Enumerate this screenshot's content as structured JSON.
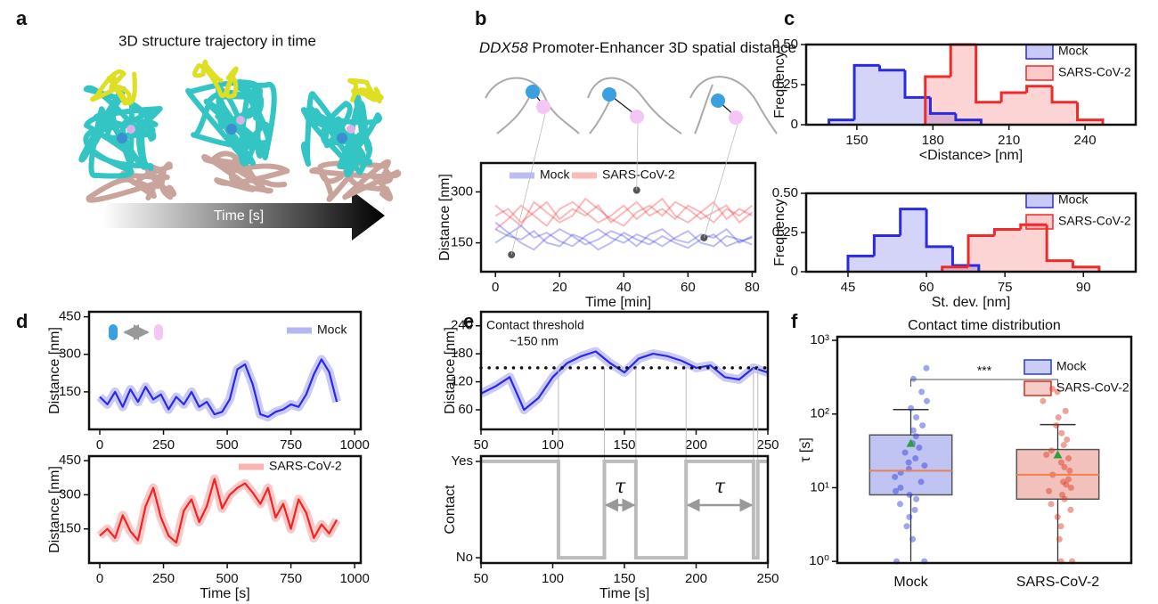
{
  "panel_labels": [
    "a",
    "b",
    "c",
    "d",
    "e",
    "f"
  ],
  "panel_a": {
    "title": "3D structure trajectory in time",
    "arrow_label": "Time [s]"
  },
  "chart_data": [
    {
      "type": "line",
      "title": "DDX58 Promoter-Enhancer 3D spatial distance",
      "xlabel": "Time [min]",
      "ylabel": "Distance [nm]",
      "x": [
        0,
        4,
        8,
        12,
        16,
        20,
        24,
        28,
        32,
        36,
        40,
        44,
        48,
        52,
        56,
        60,
        64,
        68,
        72,
        76,
        80
      ],
      "series": [
        {
          "name": "Mock",
          "color": "#3f3fe8",
          "traces": [
            [
              190,
              170,
              160,
              185,
              150,
              140,
              175,
              160,
              130,
              150,
              180,
              160,
              145,
              170,
              150,
              135,
              160,
              175,
              140,
              155,
              165
            ],
            [
              150,
              175,
              200,
              165,
              180,
              155,
              140,
              170,
              190,
              165,
              150,
              175,
              160,
              140,
              165,
              185,
              150,
              140,
              170,
              160,
              145
            ],
            [
              210,
              180,
              150,
              130,
              165,
              190,
              170,
              145,
              160,
              185,
              170,
              140,
              175,
              190,
              160,
              150,
              175,
              165,
              190,
              150,
              170
            ]
          ]
        },
        {
          "name": "SARS-CoV-2",
          "color": "#f03a3a",
          "traces": [
            [
              230,
              250,
              210,
              240,
              270,
              220,
              250,
              230,
              260,
              210,
              240,
              270,
              230,
              250,
              220,
              260,
              240,
              210,
              250,
              230,
              260
            ],
            [
              190,
              220,
              260,
              230,
              200,
              250,
              270,
              240,
              210,
              230,
              260,
              220,
              250,
              280,
              230,
              210,
              240,
              270,
              220,
              250,
              230
            ],
            [
              260,
              230,
              200,
              270,
              240,
              210,
              230,
              280,
              250,
              220,
              200,
              240,
              260,
              230,
              270,
              250,
              220,
              240,
              260,
              210,
              240
            ]
          ]
        }
      ],
      "points": {
        "x": [
          5,
          44,
          65
        ],
        "values": [
          115,
          305,
          165
        ],
        "color": "#555555"
      },
      "xlim": [
        -4.5,
        81
      ],
      "ylim": [
        65,
        385
      ],
      "xticks": [
        0,
        20,
        40,
        60,
        80
      ],
      "yticks": [
        150,
        300
      ],
      "legend": "upper left"
    },
    {
      "type": "histogram",
      "xlabel": "<Distance> [nm]",
      "ylabel": "Frequency",
      "series": [
        {
          "name": "Mock",
          "color": "#2a2ae0",
          "bins": [
            139,
            149,
            159,
            169,
            179,
            189,
            199
          ],
          "values": [
            0.03,
            0.37,
            0.34,
            0.17,
            0.07,
            0.03
          ]
        },
        {
          "name": "SARS-CoV-2",
          "color": "#ef2a2a",
          "bins": [
            177,
            187,
            197,
            207,
            217,
            227,
            237,
            247
          ],
          "values": [
            0.3,
            0.5,
            0.14,
            0.2,
            0.24,
            0.14,
            0.03
          ]
        }
      ],
      "xlim": [
        130,
        260
      ],
      "ylim": [
        0,
        0.5
      ],
      "xticks": [
        150,
        180,
        210,
        240
      ],
      "yticks": [
        0,
        0.25,
        {
          "value": 0.5,
          "label": "0.50"
        }
      ],
      "legend": "upper right"
    },
    {
      "type": "histogram",
      "xlabel": "St. dev. [nm]",
      "ylabel": "Frequency",
      "series": [
        {
          "name": "Mock",
          "color": "#2a2ae0",
          "bins": [
            45,
            50,
            55,
            60,
            65,
            70
          ],
          "values": [
            0.1,
            0.23,
            0.4,
            0.16,
            0.04
          ]
        },
        {
          "name": "SARS-CoV-2",
          "color": "#ef2a2a",
          "bins": [
            63,
            68,
            73,
            78,
            83,
            88,
            93
          ],
          "values": [
            0.03,
            0.23,
            0.27,
            0.3,
            0.07,
            0.03
          ]
        }
      ],
      "xlim": [
        37,
        100
      ],
      "ylim": [
        0,
        0.5
      ],
      "xticks": [
        45,
        60,
        75,
        90
      ],
      "yticks": [
        0,
        0.25,
        {
          "value": 0.5,
          "label": "0.50"
        }
      ],
      "legend": "upper right"
    },
    {
      "type": "line",
      "ylabel": "Distance [nm]",
      "x": [
        0,
        30,
        60,
        90,
        120,
        150,
        180,
        210,
        240,
        270,
        300,
        330,
        360,
        390,
        420,
        450,
        480,
        510,
        540,
        570,
        600,
        630,
        660,
        690,
        720,
        750,
        780,
        810,
        840,
        870,
        900,
        930
      ],
      "series": [
        {
          "name": "Mock",
          "color": "#2a2ae6",
          "values": [
            130,
            100,
            150,
            90,
            160,
            110,
            170,
            120,
            140,
            80,
            130,
            100,
            150,
            90,
            110,
            60,
            70,
            120,
            240,
            260,
            180,
            60,
            50,
            70,
            80,
            100,
            90,
            140,
            220,
            280,
            230,
            110
          ]
        }
      ],
      "xlim": [
        -42,
        1024
      ],
      "ylim": [
        0,
        470
      ],
      "xticks": [
        0,
        250,
        500,
        750,
        1000
      ],
      "yticks": [
        150,
        300,
        450
      ],
      "legend": "upper right"
    },
    {
      "type": "line",
      "xlabel": "Time [s]",
      "ylabel": "Distance [nm]",
      "x": [
        0,
        30,
        60,
        90,
        120,
        150,
        180,
        210,
        240,
        270,
        300,
        330,
        360,
        390,
        420,
        450,
        480,
        510,
        540,
        570,
        600,
        630,
        660,
        690,
        720,
        750,
        780,
        810,
        840,
        870,
        900,
        930
      ],
      "series": [
        {
          "name": "SARS-CoV-2",
          "color": "#ef2424",
          "values": [
            120,
            150,
            110,
            210,
            140,
            100,
            250,
            330,
            200,
            120,
            90,
            230,
            280,
            180,
            250,
            370,
            240,
            300,
            330,
            350,
            310,
            260,
            330,
            200,
            260,
            150,
            280,
            220,
            110,
            170,
            130,
            190
          ]
        }
      ],
      "xlim": [
        -42,
        1024
      ],
      "ylim": [
        0,
        470
      ],
      "xticks": [
        0,
        250,
        500,
        750,
        1000
      ],
      "yticks": [
        150,
        300,
        450
      ],
      "legend": "upper right"
    },
    {
      "type": "line",
      "ylabel": "Distance [nm]",
      "x": [
        50,
        60,
        70,
        80,
        90,
        100,
        110,
        120,
        130,
        140,
        150,
        160,
        170,
        180,
        190,
        200,
        210,
        220,
        230,
        240,
        250
      ],
      "series": [
        {
          "color": "#2a2ae6",
          "values": [
            95,
            110,
            130,
            60,
            85,
            130,
            160,
            175,
            185,
            160,
            140,
            170,
            180,
            175,
            165,
            150,
            155,
            130,
            125,
            150,
            140
          ]
        }
      ],
      "threshold": 150,
      "annotation": [
        "Contact threshold",
        "~150 nm"
      ],
      "xlim": [
        50,
        250
      ],
      "ylim": [
        18,
        270
      ],
      "xticks": [
        50,
        100,
        150,
        200,
        250
      ],
      "yticks": [
        60,
        120,
        180,
        240
      ]
    },
    {
      "type": "step",
      "xlabel": "Time [s]",
      "ylabel": "Contact",
      "x": [
        50,
        104,
        104,
        136,
        136,
        158,
        158,
        193,
        193,
        240,
        240,
        243,
        243,
        250
      ],
      "values": [
        1,
        1,
        0,
        0,
        1,
        1,
        0,
        0,
        1,
        1,
        0,
        0,
        1,
        1
      ],
      "color": "#bbbbbb",
      "annotations": [
        {
          "text": "τ",
          "x": [
            136,
            158
          ]
        },
        {
          "text": "τ",
          "x": [
            193,
            240
          ]
        }
      ],
      "xlim": [
        50,
        250
      ],
      "ylim": [
        -0.055,
        1.055
      ],
      "xticks": [
        50,
        100,
        150,
        200,
        250
      ],
      "yticks": [
        {
          "value": 0,
          "label": "No"
        },
        {
          "value": 1,
          "label": "Yes"
        }
      ]
    },
    {
      "type": "box",
      "title": "Contact time distribution",
      "ylabel": "τ [s]",
      "log_y": true,
      "categories": [
        "Mock",
        "SARS-CoV-2"
      ],
      "colors": [
        "#2a3ad8",
        "#d8321e"
      ],
      "boxes": [
        {
          "whisker_low": 1,
          "q1": 8,
          "median": 17,
          "q3": 52,
          "whisker_high": 115,
          "mean": 40,
          "points": [
            1,
            1,
            2,
            3,
            4,
            5,
            6,
            7,
            8,
            9,
            10,
            12,
            14,
            16,
            18,
            20,
            22,
            25,
            30,
            35,
            40,
            50,
            60,
            70,
            90,
            120,
            150,
            200,
            300,
            420
          ]
        },
        {
          "whisker_low": 1,
          "q1": 7,
          "median": 15,
          "q3": 33,
          "whisker_high": 72,
          "mean": 28,
          "points": [
            1,
            1,
            2,
            3,
            4,
            5,
            6,
            7,
            8,
            9,
            10,
            11,
            12,
            13,
            15,
            17,
            19,
            22,
            25,
            28,
            32,
            38,
            45,
            55,
            70,
            90,
            110,
            150,
            200,
            220
          ]
        }
      ],
      "significance": "***",
      "ylim": [
        0.95,
        1120
      ],
      "yticks": [
        {
          "value": 1,
          "label": "10⁰"
        },
        {
          "value": 10,
          "label": "10¹"
        },
        {
          "value": 100,
          "label": "10²"
        },
        {
          "value": 1000,
          "label": "10³"
        }
      ],
      "legend": "upper right"
    }
  ]
}
